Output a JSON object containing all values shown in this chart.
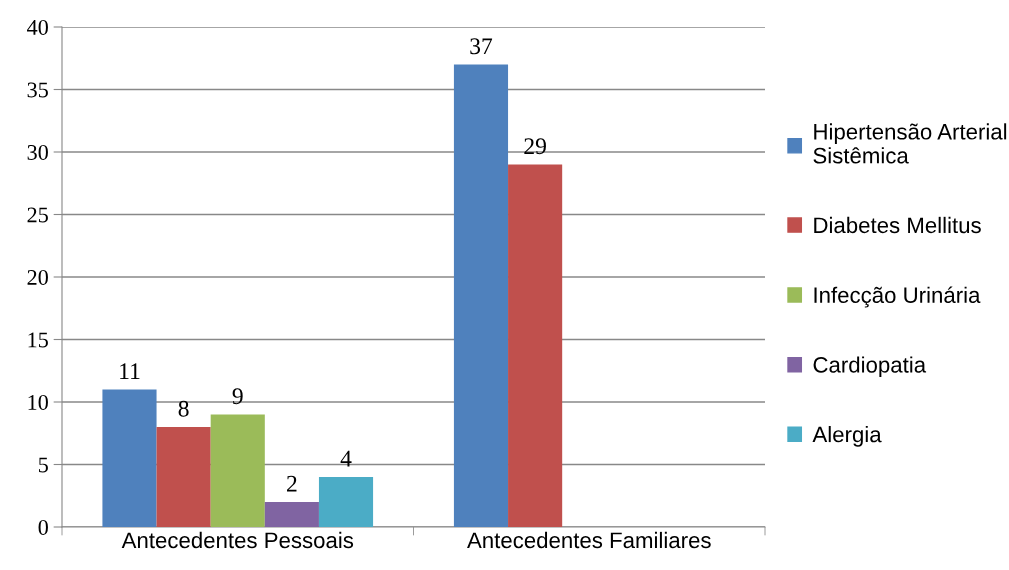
{
  "chart_data": {
    "type": "bar",
    "categories": [
      "Antecedentes Pessoais",
      "Antecedentes Familiares"
    ],
    "series": [
      {
        "name": "Hipertensão Arterial\nSistêmica",
        "color": "#4f81bd",
        "values": [
          11,
          37
        ]
      },
      {
        "name": "Diabetes Mellitus",
        "color": "#c0504d",
        "values": [
          8,
          29
        ]
      },
      {
        "name": "Infecção Urinária",
        "color": "#9bbb59",
        "values": [
          9,
          null
        ]
      },
      {
        "name": "Cardiopatia",
        "color": "#8064a2",
        "values": [
          2,
          null
        ]
      },
      {
        "name": "Alergia",
        "color": "#4bacc6",
        "values": [
          4,
          null
        ]
      }
    ],
    "ylim": [
      0,
      40
    ],
    "yticks": [
      0,
      5,
      10,
      15,
      20,
      25,
      30,
      35,
      40
    ],
    "grid": "y",
    "legend": "right",
    "data_labels": true
  }
}
